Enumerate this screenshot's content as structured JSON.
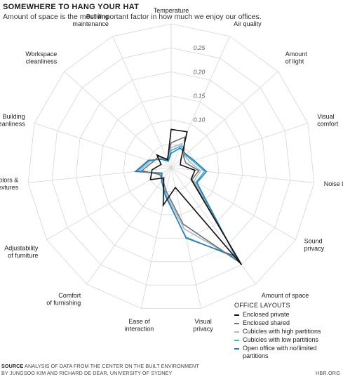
{
  "header": {
    "title": "SOMEWHERE TO HANG YOUR HAT",
    "subtitle": "Amount of space is the most important factor in how much we enjoy our offices."
  },
  "footer": {
    "source_label": "SOURCE",
    "source_text": " ANALYSIS OF DATA FROM THE CENTER ON THE BUILT ENVIRONMENT",
    "source_text2": "BY JUNGSOO KIM AND RICHARD DE DEAR, UNIVERSITY OF SYDNEY",
    "brand": "HBR.ORG"
  },
  "chart_data": {
    "type": "radar",
    "title": "SOMEWHERE TO HANG YOUR HAT",
    "subtitle": "Amount of space is the most important factor in how much we enjoy our offices.",
    "categories": [
      "Temperature",
      "Air quality",
      "Amount\nof light",
      "Visual\ncomfort",
      "Noise level",
      "Sound\nprivacy",
      "Amount of space",
      "Visual\nprivacy",
      "Ease of\ninteraction",
      "Comfort\nof furnishing",
      "Adjustability\nof furniture",
      "Colors &\ntextures",
      "Building\ncleanliness",
      "Workspace\ncleanliness",
      "Building\nmaintenance"
    ],
    "ticks": [
      0.1,
      0.15,
      0.2,
      0.25
    ],
    "tick_labels": [
      "0.10",
      "0.15",
      "0.20",
      "0.25"
    ],
    "rlim": [
      0,
      0.3
    ],
    "grid": true,
    "legend_title": "OFFICE LAYOUTS",
    "legend_position": "bottom-right",
    "series": [
      {
        "name": "Enclosed private",
        "color": "#111111",
        "values": [
          0.08,
          0.082,
          0.028,
          0.02,
          0.05,
          0.048,
          0.25,
          0.042,
          0.08,
          0.026,
          0.05,
          0.04,
          0.022,
          0.04,
          0.018
        ]
      },
      {
        "name": "Enclosed shared",
        "color": "#707070",
        "values": [
          0.052,
          0.07,
          0.035,
          0.032,
          0.058,
          0.05,
          0.245,
          0.12,
          0.05,
          0.03,
          0.028,
          0.062,
          0.04,
          0.035,
          0.02
        ]
      },
      {
        "name": "Cubicles with high partitions",
        "color": "#a6bfcc",
        "values": [
          0.042,
          0.055,
          0.038,
          0.04,
          0.062,
          0.055,
          0.238,
          0.13,
          0.055,
          0.032,
          0.025,
          0.068,
          0.045,
          0.03,
          0.018
        ]
      },
      {
        "name": "Cubicles with low partitions",
        "color": "#3fb5dc",
        "values": [
          0.036,
          0.05,
          0.04,
          0.047,
          0.07,
          0.06,
          0.232,
          0.148,
          0.06,
          0.034,
          0.024,
          0.072,
          0.048,
          0.028,
          0.016
        ]
      },
      {
        "name": "Open office with no/limited partitions",
        "color": "#2a7ab0",
        "values": [
          0.03,
          0.045,
          0.042,
          0.05,
          0.074,
          0.062,
          0.228,
          0.15,
          0.058,
          0.034,
          0.022,
          0.075,
          0.05,
          0.026,
          0.015
        ]
      }
    ]
  }
}
